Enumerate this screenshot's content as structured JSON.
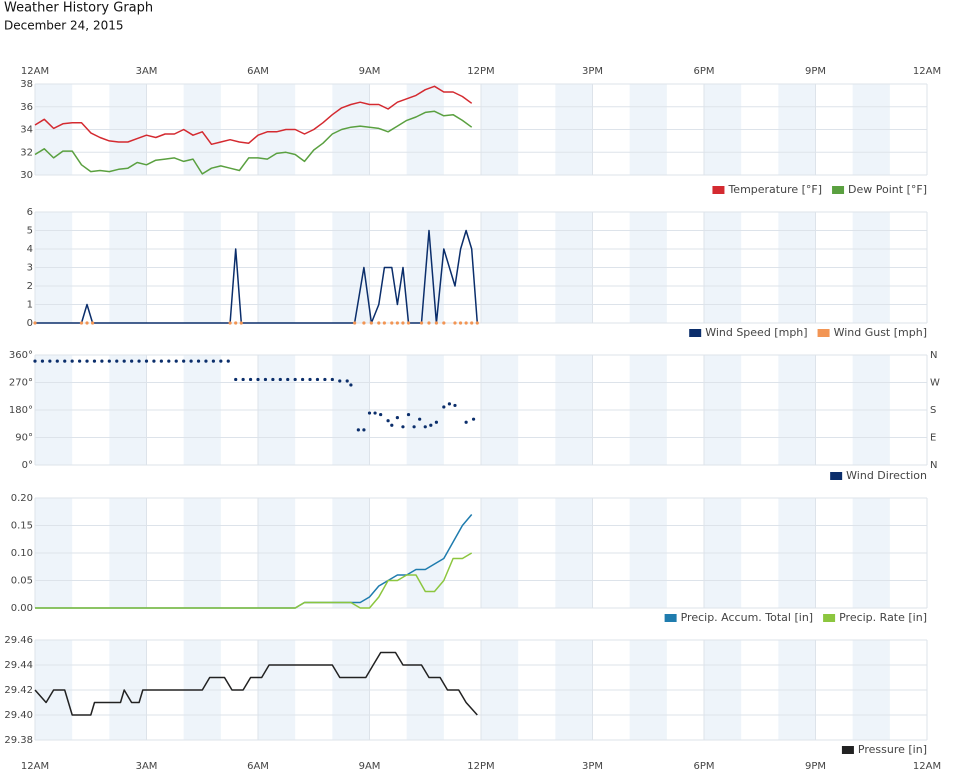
{
  "title": "Weather History Graph",
  "date": "December 24, 2015",
  "xlim": [
    0,
    24
  ],
  "xticks": [
    {
      "value": 0,
      "label": "12AM"
    },
    {
      "value": 3,
      "label": "3AM"
    },
    {
      "value": 6,
      "label": "6AM"
    },
    {
      "value": 9,
      "label": "9AM"
    },
    {
      "value": 12,
      "label": "12PM"
    },
    {
      "value": 15,
      "label": "3PM"
    },
    {
      "value": 18,
      "label": "6PM"
    },
    {
      "value": 21,
      "label": "9PM"
    },
    {
      "value": 24,
      "label": "12AM"
    }
  ],
  "chart_data": [
    {
      "type": "line",
      "ylim": [
        30,
        38
      ],
      "yticks": [
        30,
        32,
        34,
        36,
        38
      ],
      "x": [
        0,
        0.25,
        0.5,
        0.75,
        1,
        1.25,
        1.5,
        1.75,
        2,
        2.25,
        2.5,
        2.75,
        3,
        3.25,
        3.5,
        3.75,
        4,
        4.25,
        4.5,
        4.75,
        5,
        5.25,
        5.5,
        5.75,
        6,
        6.25,
        6.5,
        6.75,
        7,
        7.25,
        7.5,
        7.75,
        8,
        8.25,
        8.5,
        8.75,
        9,
        9.25,
        9.5,
        9.75,
        10,
        10.25,
        10.5,
        10.75,
        11,
        11.25,
        11.5,
        11.75
      ],
      "series": [
        {
          "name": "Temperature [°F]",
          "color": "#d42a30",
          "values": [
            34.4,
            34.9,
            34.1,
            34.5,
            34.6,
            34.6,
            33.7,
            33.3,
            33.0,
            32.9,
            32.9,
            33.2,
            33.5,
            33.3,
            33.6,
            33.6,
            34.0,
            33.5,
            33.8,
            32.7,
            32.9,
            33.1,
            32.9,
            32.8,
            33.5,
            33.8,
            33.8,
            34.0,
            34.0,
            33.6,
            34.0,
            34.6,
            35.3,
            35.9,
            36.2,
            36.4,
            36.2,
            36.2,
            35.8,
            36.4,
            36.7,
            37.0,
            37.5,
            37.8,
            37.3,
            37.3,
            36.9,
            36.3
          ]
        },
        {
          "name": "Dew Point [°F]",
          "color": "#5aa040",
          "values": [
            31.8,
            32.3,
            31.5,
            32.1,
            32.1,
            30.9,
            30.3,
            30.4,
            30.3,
            30.5,
            30.6,
            31.1,
            30.9,
            31.3,
            31.4,
            31.5,
            31.2,
            31.4,
            30.1,
            30.6,
            30.8,
            30.6,
            30.4,
            31.5,
            31.5,
            31.4,
            31.9,
            32.0,
            31.8,
            31.2,
            32.2,
            32.8,
            33.6,
            34.0,
            34.2,
            34.3,
            34.2,
            34.1,
            33.8,
            34.3,
            34.8,
            35.1,
            35.5,
            35.6,
            35.2,
            35.3,
            34.8,
            34.2
          ]
        }
      ]
    },
    {
      "type": "line",
      "ylim": [
        0,
        6
      ],
      "yticks": [
        0,
        1,
        2,
        3,
        4,
        5,
        6
      ],
      "x": [
        0,
        1.25,
        1.4,
        1.55,
        5.25,
        5.4,
        5.55,
        8.6,
        8.85,
        9.05,
        9.25,
        9.4,
        9.6,
        9.75,
        9.9,
        10.05,
        10.4,
        10.6,
        10.8,
        11.0,
        11.3,
        11.45,
        11.6,
        11.75,
        11.9
      ],
      "series": [
        {
          "name": "Wind Speed [mph]",
          "color": "#0b2e6b",
          "values": [
            0,
            0,
            1,
            0,
            0,
            4,
            0,
            0,
            3,
            0,
            1,
            3,
            3,
            1,
            3,
            0,
            0,
            5,
            0,
            4,
            2,
            4,
            5,
            4,
            0
          ]
        },
        {
          "name": "Wind Gust [mph]",
          "color": "#f29554",
          "style": "dots",
          "values": [
            0,
            0,
            0,
            0,
            0,
            0,
            0,
            0,
            0,
            0,
            0,
            0,
            0,
            0,
            0,
            0,
            0,
            0,
            0,
            0,
            0,
            0,
            0,
            0,
            0
          ]
        }
      ]
    },
    {
      "type": "line",
      "ylim": [
        0,
        360
      ],
      "yticks": [
        {
          "value": 0,
          "label": "0°"
        },
        {
          "value": 90,
          "label": "90°"
        },
        {
          "value": 180,
          "label": "180°"
        },
        {
          "value": 270,
          "label": "270°"
        },
        {
          "value": 360,
          "label": "360°"
        }
      ],
      "y2lim": [
        0,
        360
      ],
      "y2ticks": [
        {
          "value": 0,
          "label": "N"
        },
        {
          "value": 90,
          "label": "E"
        },
        {
          "value": 180,
          "label": "S"
        },
        {
          "value": 270,
          "label": "W"
        },
        {
          "value": 360,
          "label": "N"
        }
      ],
      "x": [
        0,
        0.2,
        0.4,
        0.6,
        0.8,
        1,
        1.2,
        1.4,
        1.6,
        1.8,
        2,
        2.2,
        2.4,
        2.6,
        2.8,
        3,
        3.2,
        3.4,
        3.6,
        3.8,
        4,
        4.2,
        4.4,
        4.6,
        4.8,
        5,
        5.2,
        5.4,
        5.6,
        5.8,
        6,
        6.2,
        6.4,
        6.6,
        6.8,
        7,
        7.2,
        7.4,
        7.6,
        7.8,
        8,
        8.2,
        8.4,
        8.5,
        8.7,
        8.85,
        9,
        9.15,
        9.3,
        9.5,
        9.6,
        9.75,
        9.9,
        10.05,
        10.2,
        10.35,
        10.5,
        10.65,
        10.8,
        11,
        11.15,
        11.3,
        11.6,
        11.8
      ],
      "series": [
        {
          "name": "Wind Direction",
          "color": "#0b2e6b",
          "style": "dots",
          "values": [
            340,
            340,
            340,
            340,
            340,
            340,
            340,
            340,
            340,
            340,
            340,
            340,
            340,
            340,
            340,
            340,
            340,
            340,
            340,
            340,
            340,
            340,
            340,
            340,
            340,
            340,
            340,
            280,
            280,
            280,
            280,
            280,
            280,
            280,
            280,
            280,
            280,
            280,
            280,
            280,
            280,
            275,
            275,
            262,
            115,
            115,
            170,
            170,
            165,
            145,
            130,
            155,
            125,
            165,
            125,
            150,
            125,
            130,
            140,
            190,
            200,
            195,
            140,
            150
          ]
        }
      ]
    },
    {
      "type": "line",
      "ylim": [
        0,
        0.2
      ],
      "yticks": [
        {
          "value": 0,
          "label": "0.00"
        },
        0.05,
        {
          "value": 0.1,
          "label": "0.10"
        },
        0.15,
        {
          "value": 0.2,
          "label": "0.20"
        }
      ],
      "x": [
        0,
        7,
        7.25,
        7.5,
        7.75,
        8,
        8.25,
        8.5,
        8.75,
        9,
        9.25,
        9.5,
        9.75,
        10,
        10.25,
        10.5,
        10.75,
        11,
        11.25,
        11.5,
        11.75
      ],
      "series": [
        {
          "name": "Precip. Accum. Total [in]",
          "color": "#1f7cae",
          "values": [
            0,
            0,
            0.01,
            0.01,
            0.01,
            0.01,
            0.01,
            0.01,
            0.01,
            0.02,
            0.04,
            0.05,
            0.06,
            0.06,
            0.07,
            0.07,
            0.08,
            0.09,
            0.12,
            0.15,
            0.17
          ]
        },
        {
          "name": "Precip. Rate [in]",
          "color": "#8cc63f",
          "values": [
            0,
            0,
            0.01,
            0.01,
            0.01,
            0.01,
            0.01,
            0.01,
            0,
            0,
            0.02,
            0.05,
            0.05,
            0.06,
            0.06,
            0.03,
            0.03,
            0.05,
            0.09,
            0.09,
            0.1
          ]
        }
      ]
    },
    {
      "type": "line",
      "ylim": [
        29.38,
        29.46
      ],
      "yticks": [
        29.38,
        {
          "value": 29.4,
          "label": "29.40"
        },
        29.42,
        29.44,
        29.46
      ],
      "x": [
        0,
        0.3,
        0.5,
        0.8,
        1,
        1.5,
        1.6,
        2.3,
        2.4,
        2.6,
        2.8,
        2.9,
        4.5,
        4.7,
        5.1,
        5.3,
        5.6,
        5.8,
        6.1,
        6.3,
        8,
        8.2,
        8.9,
        9.1,
        9.3,
        9.7,
        9.9,
        10.4,
        10.6,
        10.9,
        11.1,
        11.4,
        11.6,
        11.9
      ],
      "series": [
        {
          "name": "Pressure [in]",
          "color": "#222222",
          "values": [
            29.42,
            29.41,
            29.42,
            29.42,
            29.4,
            29.4,
            29.41,
            29.41,
            29.42,
            29.41,
            29.41,
            29.42,
            29.42,
            29.43,
            29.43,
            29.42,
            29.42,
            29.43,
            29.43,
            29.44,
            29.44,
            29.43,
            29.43,
            29.44,
            29.45,
            29.45,
            29.44,
            29.44,
            29.43,
            29.43,
            29.42,
            29.42,
            29.41,
            29.4
          ]
        }
      ]
    }
  ]
}
